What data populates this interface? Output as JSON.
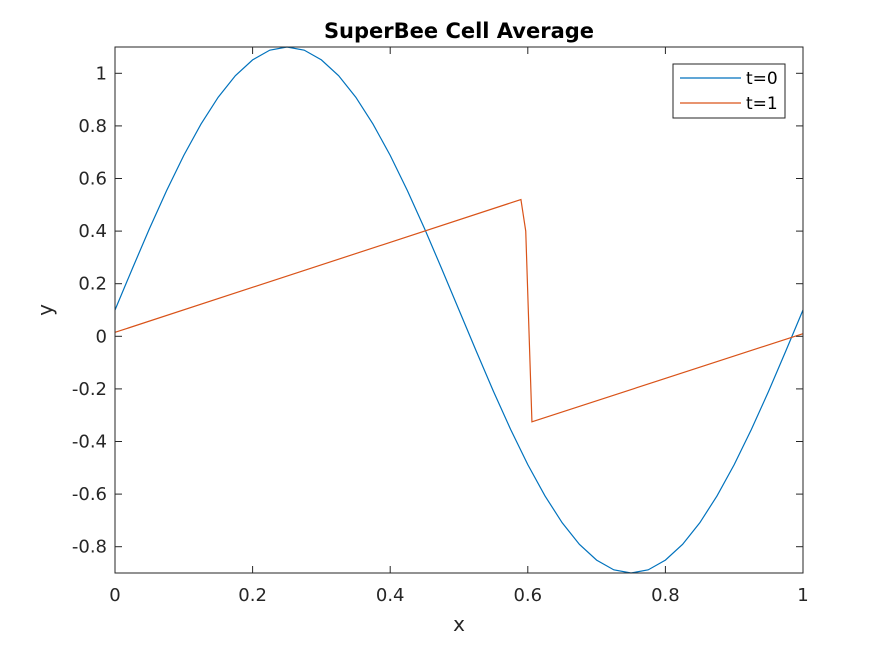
{
  "chart_data": {
    "type": "line",
    "title": "SuperBee Cell Average",
    "xlabel": "x",
    "ylabel": "y",
    "xlim": [
      0,
      1
    ],
    "ylim": [
      -0.9,
      1.1
    ],
    "xticks": [
      0,
      0.2,
      0.4,
      0.6,
      0.8,
      1
    ],
    "xtick_labels": [
      "0",
      "0.2",
      "0.4",
      "0.6",
      "0.8",
      "1"
    ],
    "yticks": [
      -0.8,
      -0.6,
      -0.4,
      -0.2,
      0,
      0.2,
      0.4,
      0.6,
      0.8,
      1
    ],
    "ytick_labels": [
      "-0.8",
      "-0.6",
      "-0.4",
      "-0.2",
      "0",
      "0.2",
      "0.4",
      "0.6",
      "0.8",
      "1"
    ],
    "grid": false,
    "legend_position": "top-right",
    "series": [
      {
        "name": "t=0",
        "color": "#0072BD",
        "x": [
          0,
          0.025,
          0.05,
          0.075,
          0.1,
          0.125,
          0.15,
          0.175,
          0.2,
          0.225,
          0.25,
          0.275,
          0.3,
          0.325,
          0.35,
          0.375,
          0.4,
          0.425,
          0.45,
          0.475,
          0.5,
          0.525,
          0.55,
          0.575,
          0.6,
          0.625,
          0.65,
          0.675,
          0.7,
          0.725,
          0.75,
          0.775,
          0.8,
          0.825,
          0.85,
          0.875,
          0.9,
          0.925,
          0.95,
          0.975,
          1
        ],
        "y": [
          0.1,
          0.256,
          0.409,
          0.554,
          0.688,
          0.807,
          0.909,
          0.991,
          1.051,
          1.088,
          1.1,
          1.088,
          1.051,
          0.991,
          0.909,
          0.807,
          0.688,
          0.554,
          0.409,
          0.256,
          0.1,
          -0.056,
          -0.209,
          -0.354,
          -0.488,
          -0.607,
          -0.709,
          -0.791,
          -0.851,
          -0.888,
          -0.9,
          -0.888,
          -0.851,
          -0.791,
          -0.709,
          -0.607,
          -0.488,
          -0.354,
          -0.209,
          -0.056,
          0.1
        ]
      },
      {
        "name": "t=1",
        "color": "#D95319",
        "x": [
          0,
          0.59,
          0.597,
          0.606,
          1
        ],
        "y": [
          0.015,
          0.52,
          0.4,
          -0.325,
          0.01
        ]
      }
    ]
  }
}
